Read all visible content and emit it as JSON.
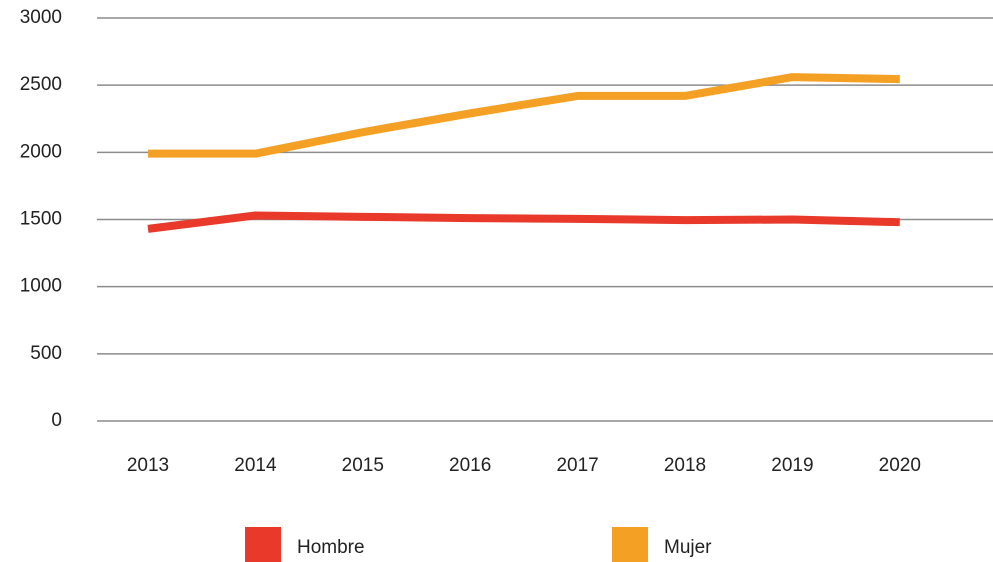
{
  "chart_data": {
    "type": "line",
    "categories": [
      "2013",
      "2014",
      "2015",
      "2016",
      "2017",
      "2018",
      "2019",
      "2020"
    ],
    "series": [
      {
        "name": "Hombre",
        "color": "#e8392a",
        "values": [
          1430,
          1530,
          1520,
          1510,
          1505,
          1495,
          1500,
          1480
        ]
      },
      {
        "name": "Mujer",
        "color": "#f4a024",
        "values": [
          1990,
          1990,
          2150,
          2290,
          2420,
          2420,
          2560,
          2545
        ]
      }
    ],
    "ylim": [
      0,
      3000
    ],
    "yticks": [
      0,
      500,
      1000,
      1500,
      2000,
      2500,
      3000
    ],
    "grid": true
  }
}
